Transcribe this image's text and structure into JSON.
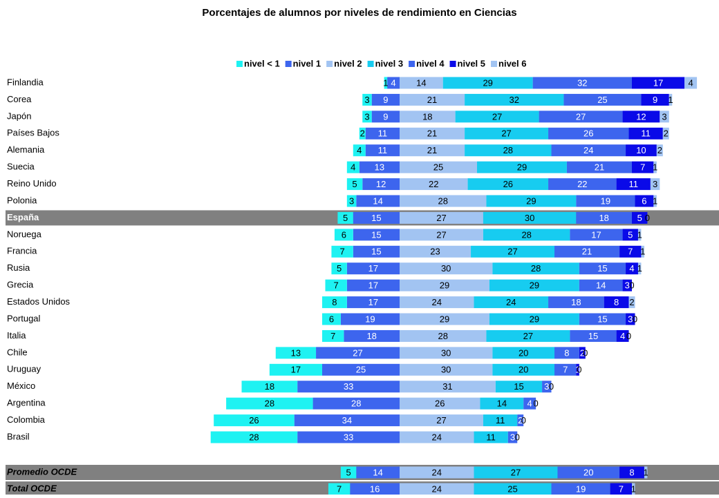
{
  "chart_data": {
    "type": "bar",
    "title": "Porcentajes de alumnos por niveles de rendimiento en Ciencias",
    "categories": [
      "Finlandia",
      "Corea",
      "Japón",
      "Países Bajos",
      "Alemania",
      "Suecia",
      "Reino Unido",
      "Polonia",
      "España",
      "Noruega",
      "Francia",
      "Rusia",
      "Grecia",
      "Estados Unidos",
      "Portugal",
      "Italia",
      "Chile",
      "Uruguay",
      "México",
      "Argentina",
      "Colombia",
      "Brasil",
      "Promedio OCDE",
      "Total OCDE"
    ],
    "series": [
      {
        "name": "nivel < 1",
        "color": "#1ef2f2",
        "values": [
          1,
          3,
          3,
          2,
          4,
          4,
          5,
          3,
          5,
          6,
          7,
          5,
          7,
          8,
          6,
          7,
          13,
          17,
          18,
          28,
          26,
          28,
          5,
          7
        ]
      },
      {
        "name": "nivel 1",
        "color": "#3d65ee",
        "values": [
          4,
          9,
          9,
          11,
          11,
          13,
          12,
          14,
          15,
          15,
          15,
          17,
          17,
          17,
          19,
          18,
          27,
          25,
          33,
          28,
          34,
          33,
          14,
          16
        ]
      },
      {
        "name": "nivel 2",
        "color": "#a2c4f2",
        "values": [
          14,
          21,
          18,
          21,
          21,
          25,
          22,
          28,
          27,
          27,
          23,
          30,
          29,
          24,
          29,
          28,
          30,
          30,
          31,
          26,
          27,
          24,
          24,
          24
        ]
      },
      {
        "name": "nivel 3",
        "color": "#17ccf0",
        "values": [
          29,
          32,
          27,
          27,
          28,
          29,
          26,
          29,
          30,
          28,
          27,
          28,
          29,
          24,
          29,
          27,
          20,
          20,
          15,
          14,
          11,
          11,
          27,
          25
        ]
      },
      {
        "name": "nivel 4",
        "color": "#3d65ee",
        "values": [
          32,
          25,
          27,
          26,
          24,
          21,
          22,
          19,
          18,
          17,
          21,
          15,
          14,
          18,
          15,
          15,
          8,
          7,
          3,
          4,
          2,
          3,
          20,
          19
        ]
      },
      {
        "name": "nivel 5",
        "color": "#0a0ae8",
        "values": [
          17,
          9,
          12,
          11,
          10,
          7,
          11,
          6,
          5,
          5,
          7,
          4,
          3,
          8,
          3,
          4,
          2,
          1,
          0,
          0,
          0,
          0,
          8,
          7
        ]
      },
      {
        "name": "nivel 6",
        "color": "#a2c4f2",
        "values": [
          4,
          1,
          3,
          2,
          2,
          1,
          3,
          1,
          0,
          1,
          1,
          1,
          0,
          2,
          0,
          0,
          0,
          0,
          0,
          0,
          0,
          0,
          1,
          1
        ]
      }
    ]
  }
}
